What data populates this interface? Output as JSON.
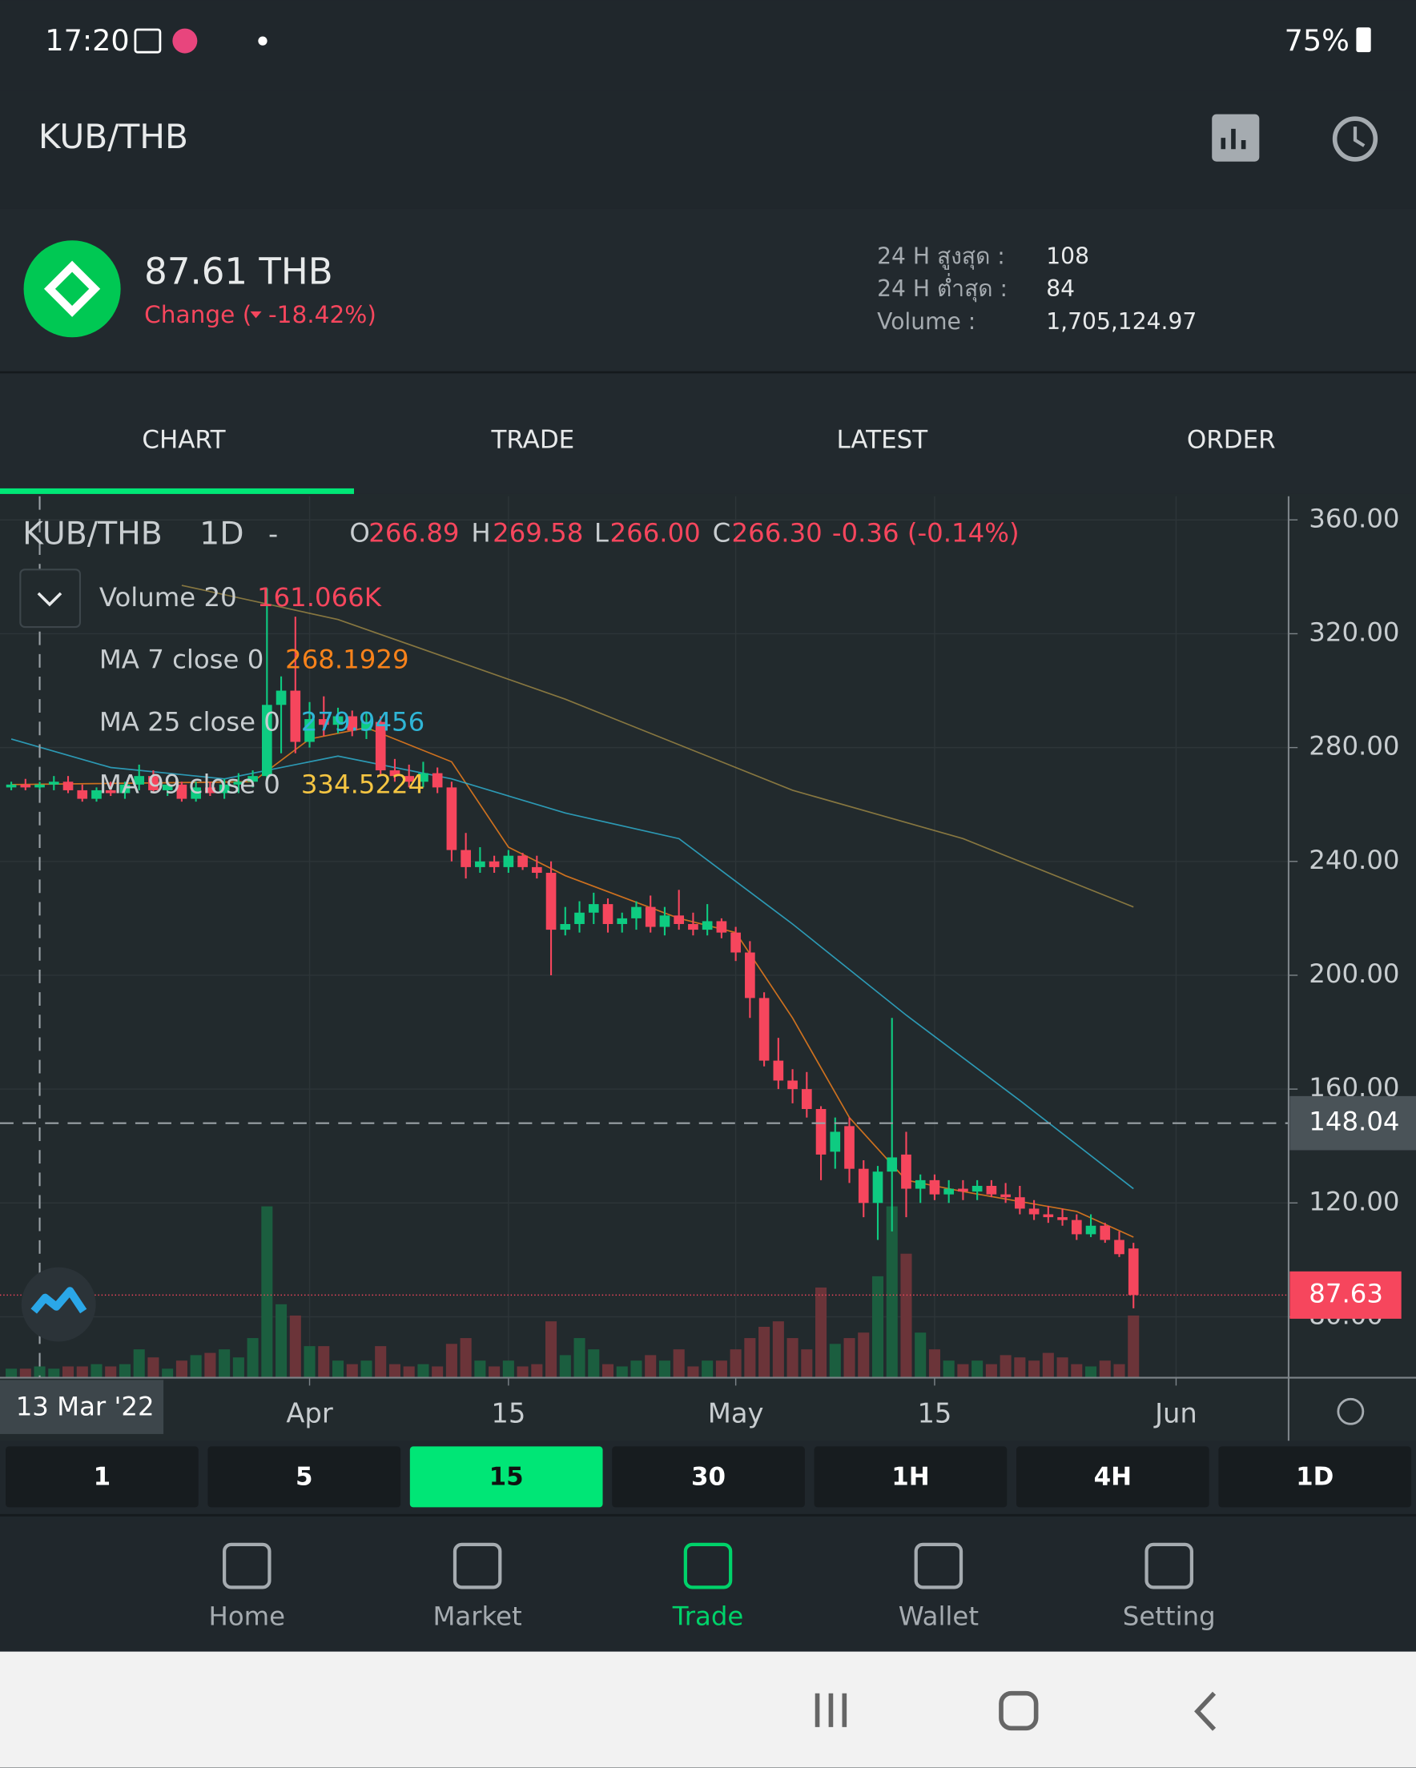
{
  "status_bar": {
    "time": "17:20",
    "battery": "75%"
  },
  "header": {
    "pair": "KUB/THB"
  },
  "ticker": {
    "price": "87.61 THB",
    "change_label": "Change (",
    "change": "-18.42%)",
    "stats": [
      {
        "label": "24 H สูงสุด :",
        "value": "108"
      },
      {
        "label": "24 H ต่ำสุด :",
        "value": "84"
      },
      {
        "label": "Volume :",
        "value": "1,705,124.97"
      }
    ]
  },
  "tabs": [
    "CHART",
    "TRADE",
    "LATEST",
    "ORDER"
  ],
  "chart_data": {
    "type": "candlestick",
    "symbol": "KUB/THB",
    "interval": "1D",
    "separator": "-",
    "ohlc_legend": [
      {
        "label": "O",
        "value": "266.89"
      },
      {
        "label": "H",
        "value": "269.58"
      },
      {
        "label": "L",
        "value": "266.00"
      },
      {
        "label": "C",
        "value": "266.30"
      }
    ],
    "change": "-0.36 (-0.14%)",
    "indicators": [
      {
        "name": "Volume 20",
        "value": "161.066K",
        "color": "#f6465d"
      },
      {
        "name": "MA 7 close 0",
        "value": "268.1929",
        "color": "#f7821b",
        "x": [
          0,
          17,
          21,
          25,
          31,
          35,
          39,
          47,
          51,
          55,
          59,
          63,
          67,
          75,
          79
        ],
        "values": [
          267,
          268,
          283,
          287,
          275,
          245,
          235,
          220,
          215,
          185,
          150,
          128,
          124,
          117,
          108
        ]
      },
      {
        "name": "MA 25 close 0",
        "value": "279.9456",
        "color": "#2fb5d6",
        "x": [
          0,
          7,
          15,
          23,
          31,
          39,
          47,
          55,
          63,
          71,
          79
        ],
        "values": [
          283,
          273,
          269,
          277,
          269,
          257,
          248,
          218,
          186,
          156,
          125
        ]
      },
      {
        "name": "MA 99 close 0",
        "value": "334.5224",
        "color": "#f5c542",
        "line_color": "#a08a45",
        "x": [
          12,
          23,
          39,
          55,
          67,
          79
        ],
        "values": [
          337,
          325,
          297,
          265,
          248,
          224
        ]
      }
    ],
    "ohlc": [
      [
        266,
        268,
        265,
        267
      ],
      [
        267,
        269,
        265,
        266
      ],
      [
        266,
        268,
        264,
        267
      ],
      [
        267,
        270,
        265,
        268
      ],
      [
        268,
        270,
        264,
        265
      ],
      [
        265,
        267,
        261,
        262
      ],
      [
        262,
        266,
        261,
        265
      ],
      [
        265,
        268,
        263,
        264
      ],
      [
        264,
        268,
        262,
        267
      ],
      [
        267,
        274,
        265,
        270
      ],
      [
        270,
        272,
        264,
        265
      ],
      [
        265,
        268,
        263,
        267
      ],
      [
        267,
        268,
        261,
        262
      ],
      [
        262,
        268,
        261,
        266
      ],
      [
        266,
        268,
        263,
        264
      ],
      [
        264,
        269,
        262,
        267
      ],
      [
        267,
        271,
        264,
        268
      ],
      [
        268,
        272,
        266,
        270
      ],
      [
        270,
        336,
        268,
        295
      ],
      [
        295,
        305,
        278,
        300
      ],
      [
        300,
        326,
        278,
        282
      ],
      [
        282,
        296,
        280,
        290
      ],
      [
        290,
        298,
        284,
        288
      ],
      [
        288,
        294,
        285,
        291
      ],
      [
        291,
        293,
        284,
        286
      ],
      [
        286,
        292,
        283,
        289
      ],
      [
        289,
        291,
        270,
        272
      ],
      [
        272,
        276,
        268,
        270
      ],
      [
        270,
        274,
        266,
        268
      ],
      [
        268,
        275,
        266,
        271
      ],
      [
        271,
        273,
        264,
        266
      ],
      [
        266,
        268,
        240,
        244
      ],
      [
        244,
        250,
        234,
        238
      ],
      [
        238,
        245,
        236,
        240
      ],
      [
        240,
        242,
        236,
        238
      ],
      [
        238,
        244,
        236,
        242
      ],
      [
        242,
        243,
        237,
        238
      ],
      [
        238,
        242,
        234,
        236
      ],
      [
        236,
        240,
        200,
        216
      ],
      [
        216,
        224,
        214,
        218
      ],
      [
        218,
        226,
        215,
        222
      ],
      [
        222,
        229,
        218,
        225
      ],
      [
        225,
        227,
        215,
        218
      ],
      [
        218,
        222,
        215,
        220
      ],
      [
        220,
        226,
        216,
        224
      ],
      [
        224,
        228,
        215,
        217
      ],
      [
        217,
        224,
        214,
        221
      ],
      [
        221,
        230,
        216,
        218
      ],
      [
        218,
        222,
        214,
        216
      ],
      [
        216,
        225,
        214,
        219
      ],
      [
        219,
        220,
        213,
        215
      ],
      [
        215,
        217,
        205,
        208
      ],
      [
        208,
        212,
        185,
        192
      ],
      [
        192,
        194,
        168,
        170
      ],
      [
        170,
        178,
        160,
        163
      ],
      [
        163,
        167,
        155,
        160
      ],
      [
        160,
        166,
        150,
        153
      ],
      [
        153,
        154,
        128,
        137
      ],
      [
        138,
        150,
        132,
        145
      ],
      [
        147,
        150,
        127,
        132
      ],
      [
        132,
        135,
        115,
        120
      ],
      [
        120,
        133,
        107,
        131
      ],
      [
        131,
        185,
        110,
        136
      ],
      [
        137,
        145,
        115,
        125
      ],
      [
        125,
        130,
        120,
        128
      ],
      [
        128,
        130,
        121,
        123
      ],
      [
        123,
        128,
        120,
        125
      ],
      [
        125,
        128,
        121,
        124
      ],
      [
        124,
        128,
        121,
        126
      ],
      [
        126,
        128,
        122,
        123
      ],
      [
        123,
        127,
        120,
        122
      ],
      [
        122,
        126,
        116,
        118
      ],
      [
        118,
        121,
        114,
        116
      ],
      [
        116,
        119,
        113,
        115
      ],
      [
        115,
        118,
        112,
        114
      ],
      [
        114,
        116,
        107,
        109
      ],
      [
        109,
        116,
        108,
        112
      ],
      [
        112,
        113,
        106,
        107
      ],
      [
        107,
        110,
        101,
        102
      ],
      [
        104,
        106,
        83,
        87.63
      ]
    ],
    "volume": [
      28,
      28,
      35,
      28,
      35,
      35,
      42,
      35,
      42,
      88,
      63,
      28,
      53,
      70,
      77,
      88,
      63,
      123,
      532,
      228,
      193,
      98,
      98,
      53,
      42,
      53,
      98,
      42,
      35,
      42,
      35,
      105,
      123,
      53,
      35,
      53,
      35,
      42,
      175,
      70,
      123,
      88,
      42,
      35,
      53,
      70,
      53,
      88,
      35,
      53,
      53,
      88,
      123,
      158,
      175,
      123,
      88,
      280,
      105,
      123,
      140,
      315,
      532,
      385,
      140,
      88,
      53,
      42,
      53,
      42,
      70,
      63,
      53,
      77,
      63,
      42,
      35,
      53,
      42,
      193
    ],
    "up_color": "#0ecb81",
    "down_color": "#f6465d",
    "ylim": [
      58.6,
      368.3
    ],
    "yticks": [
      {
        "value": 80,
        "label": "80.00"
      },
      {
        "value": 120,
        "label": "120.00"
      },
      {
        "value": 160,
        "label": "160.00"
      },
      {
        "value": 200,
        "label": "200.00"
      },
      {
        "value": 240,
        "label": "240.00"
      },
      {
        "value": 280,
        "label": "280.00"
      },
      {
        "value": 320,
        "label": "320.00"
      },
      {
        "value": 360,
        "label": "360.00"
      }
    ],
    "xticks": [
      {
        "value": 21,
        "label": "Apr"
      },
      {
        "value": 35,
        "label": "15"
      },
      {
        "value": 51,
        "label": "May"
      },
      {
        "value": 65,
        "label": "15"
      },
      {
        "value": 82,
        "label": "Jun"
      }
    ],
    "crosshair": {
      "index": 2,
      "label": "13 Mar '22",
      "value": 148.04
    },
    "last_price": 87.63,
    "grid": true
  },
  "intervals": [
    "1",
    "5",
    "15",
    "30",
    "1H",
    "4H",
    "1D"
  ],
  "active_interval": 2,
  "nav": [
    "Home",
    "Market",
    "Trade",
    "Wallet",
    "Setting"
  ],
  "active_nav": 2
}
